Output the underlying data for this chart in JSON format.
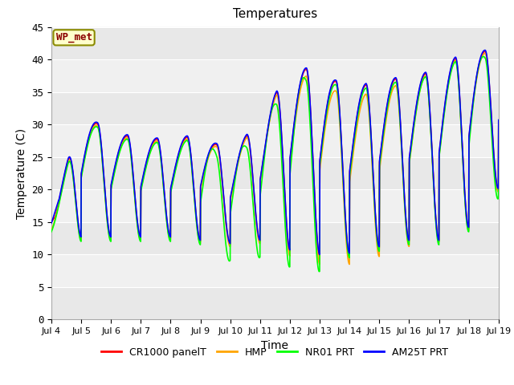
{
  "title": "Temperatures",
  "xlabel": "Time",
  "ylabel": "Temperature (C)",
  "ylim": [
    0,
    45
  ],
  "yticks": [
    0,
    5,
    10,
    15,
    20,
    25,
    30,
    35,
    40,
    45
  ],
  "xtick_labels": [
    "Jul 4",
    "Jul 5",
    "Jul 6",
    "Jul 7",
    "Jul 8",
    "Jul 9",
    "Jul 10",
    "Jul 11",
    "Jul 12",
    "Jul 13",
    "Jul 14",
    "Jul 15",
    "Jul 16",
    "Jul 17",
    "Jul 18",
    "Jul 19"
  ],
  "annotation": "WP_met",
  "legend": [
    "CR1000 panelT",
    "HMP",
    "NR01 PRT",
    "AM25T PRT"
  ],
  "line_colors": [
    "red",
    "orange",
    "lime",
    "blue"
  ],
  "fig_bg": "#ffffff",
  "plot_bg_color": "#ffffff",
  "num_days": 15,
  "samples_per_day": 144,
  "band_colors": [
    "#e8e8e8",
    "#f5f5f5"
  ],
  "band_ranges": [
    [
      0,
      5
    ],
    [
      5,
      10
    ],
    [
      10,
      15
    ],
    [
      15,
      20
    ],
    [
      20,
      25
    ],
    [
      25,
      30
    ],
    [
      30,
      35
    ],
    [
      35,
      40
    ],
    [
      40,
      45
    ]
  ],
  "band_alternating": [
    true,
    false,
    true,
    false,
    true,
    false,
    true,
    false,
    true
  ]
}
